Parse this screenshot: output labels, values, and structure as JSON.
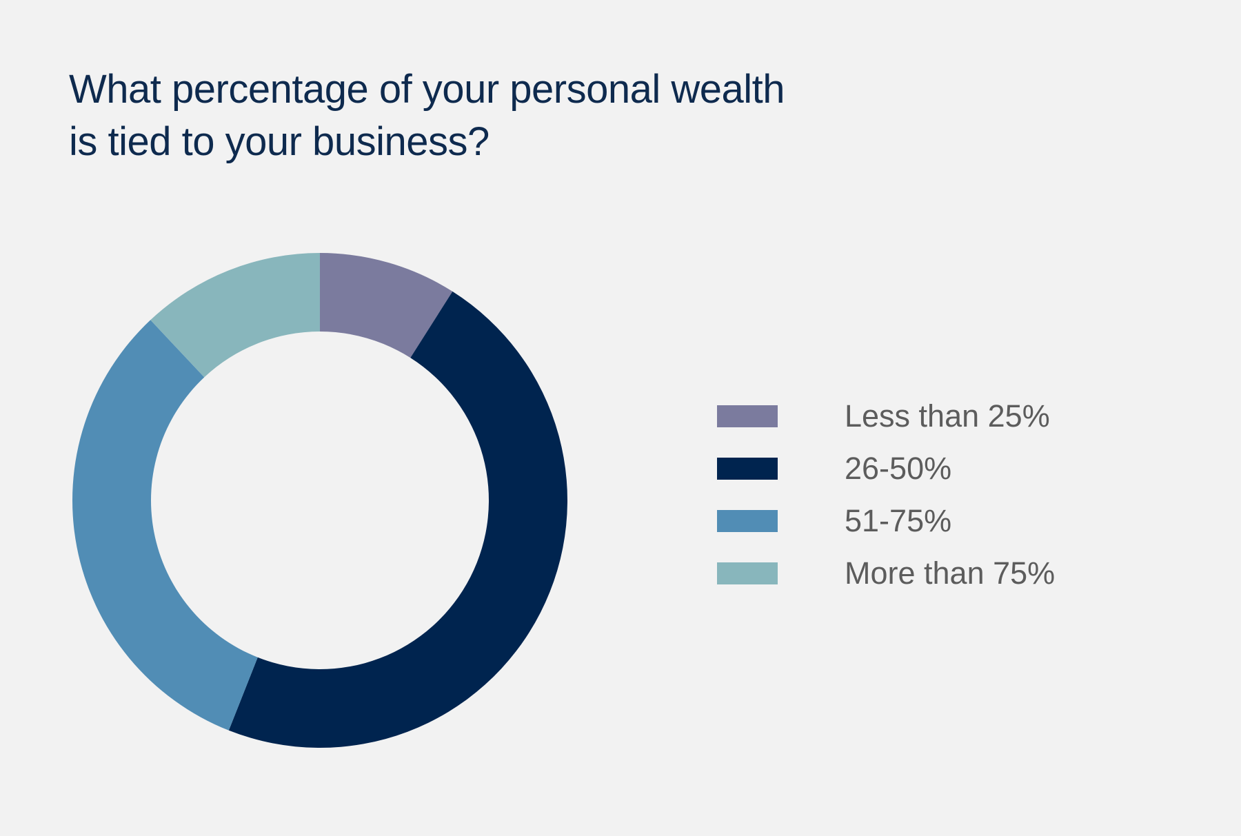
{
  "chart_data": {
    "type": "pie",
    "donut": true,
    "title": [
      "What percentage of your personal wealth",
      "is tied to your business?"
    ],
    "categories": [
      "Less than 25%",
      "26-50%",
      "51-75%",
      "More than 75%"
    ],
    "values": [
      9,
      47,
      32,
      12
    ],
    "unit": "%",
    "colors": [
      "#7b7b9e",
      "#00244f",
      "#518db5",
      "#88b6bc"
    ],
    "legend_position": "right",
    "start_angle": "top, clockwise"
  }
}
